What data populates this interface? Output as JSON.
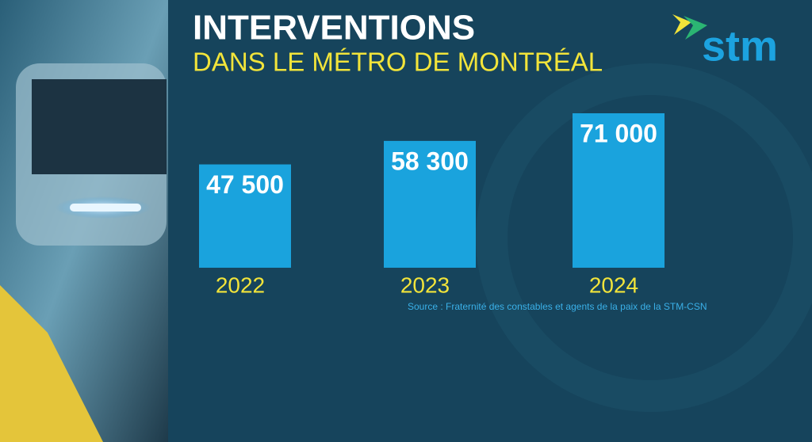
{
  "chart_data": {
    "type": "bar",
    "title": "INTERVENTIONS",
    "subtitle": "DANS LE MÉTRO DE MONTRÉAL",
    "logo": "stm",
    "source": "Source : Fraternité des constables et agents de la paix de la STM-CSN",
    "categories": [
      "2022",
      "2023",
      "2024"
    ],
    "values": [
      47500,
      58300,
      71000
    ],
    "value_labels": [
      "47 500",
      "58 300",
      "71 000"
    ],
    "color": "#1aa3dd"
  }
}
